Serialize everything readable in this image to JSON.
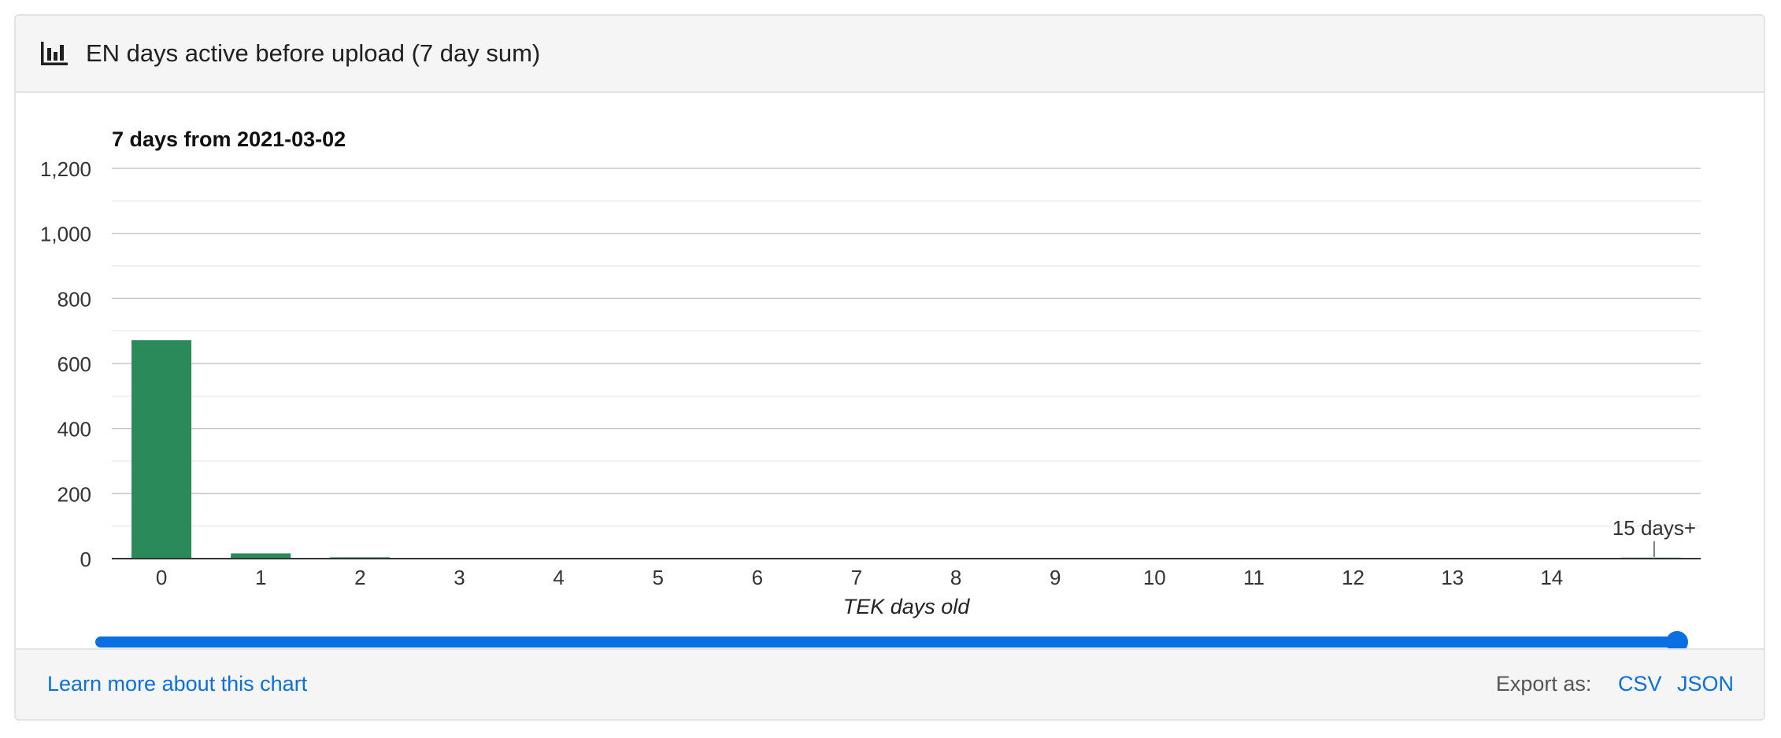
{
  "card": {
    "title": "EN days active before upload (7 day sum)",
    "icon": "bar-chart-icon"
  },
  "footer": {
    "learn_more": "Learn more about this chart",
    "export_label": "Export as:",
    "export_csv": "CSV",
    "export_json": "JSON"
  },
  "colors": {
    "bar": "#2a8a5a",
    "accent": "#0a6fe0",
    "grid_major": "#c6c6c6",
    "grid_minor": "#ececec"
  },
  "slider": {
    "position": 1.0
  },
  "chart_data": {
    "type": "bar",
    "title": "7 days from 2021-03-02",
    "xlabel": "TEK days old",
    "ylabel": "",
    "categories": [
      "0",
      "1",
      "2",
      "3",
      "4",
      "5",
      "6",
      "7",
      "8",
      "9",
      "10",
      "11",
      "12",
      "13",
      "14",
      "15 days+"
    ],
    "values": [
      672,
      16,
      4,
      1,
      1,
      1,
      1,
      1,
      1,
      1,
      1,
      1,
      1,
      1,
      1,
      3
    ],
    "ylim": [
      0,
      1200
    ],
    "yticks": [
      "0",
      "200",
      "400",
      "600",
      "800",
      "1,000",
      "1,200"
    ],
    "ytick_values": [
      0,
      200,
      400,
      600,
      800,
      1000,
      1200
    ],
    "grid": true,
    "legend": "none"
  }
}
